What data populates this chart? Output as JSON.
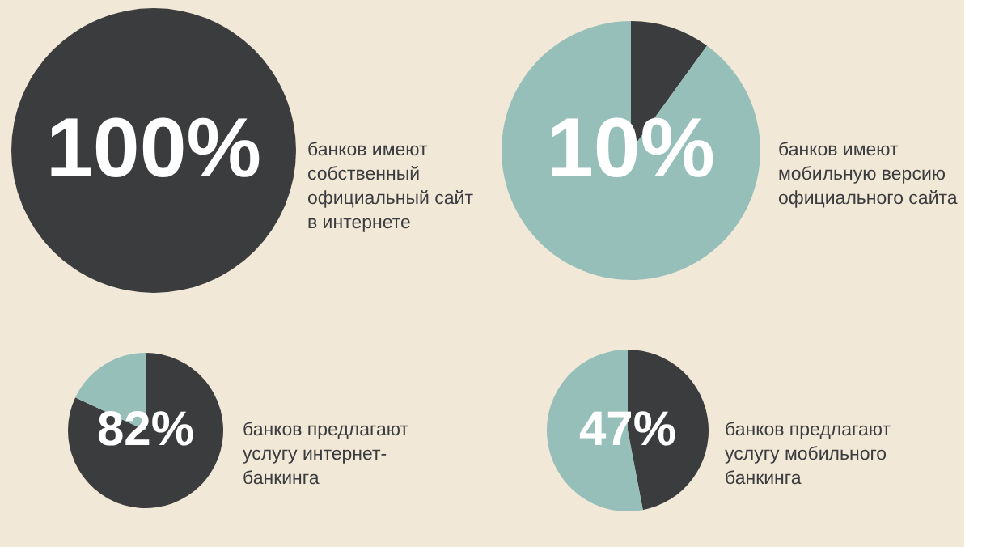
{
  "chart_data": [
    {
      "type": "pie",
      "categories": [
        null
      ],
      "values": [
        100
      ],
      "colors": [
        "#3b3c3e"
      ],
      "value_labels": [
        "100%"
      ],
      "annotations": [
        "банков имеют\nсобственный\nофициальный сайт\nв интернете"
      ]
    },
    {
      "type": "pie",
      "categories": [
        null,
        null
      ],
      "values": [
        10,
        90
      ],
      "colors": [
        "#3b3c3e",
        "#96bfba"
      ],
      "value_labels": [
        "10%",
        null
      ],
      "annotations": [
        "банков имеют\nмобильную версию\nофициального сайта"
      ]
    },
    {
      "type": "pie",
      "categories": [
        null,
        null
      ],
      "values": [
        82,
        18
      ],
      "colors": [
        "#3b3c3e",
        "#96bfba"
      ],
      "value_labels": [
        "82%",
        null
      ],
      "annotations": [
        "банков предлагают\nуслугу интернет-\nбанкинга"
      ]
    },
    {
      "type": "pie",
      "categories": [
        null,
        null
      ],
      "values": [
        47,
        53
      ],
      "colors": [
        "#3b3c3e",
        "#96bfba"
      ],
      "value_labels": [
        "47%",
        null
      ],
      "annotations": [
        "банков предлагают\nуслугу мобильного\nбанкинга"
      ]
    }
  ]
}
